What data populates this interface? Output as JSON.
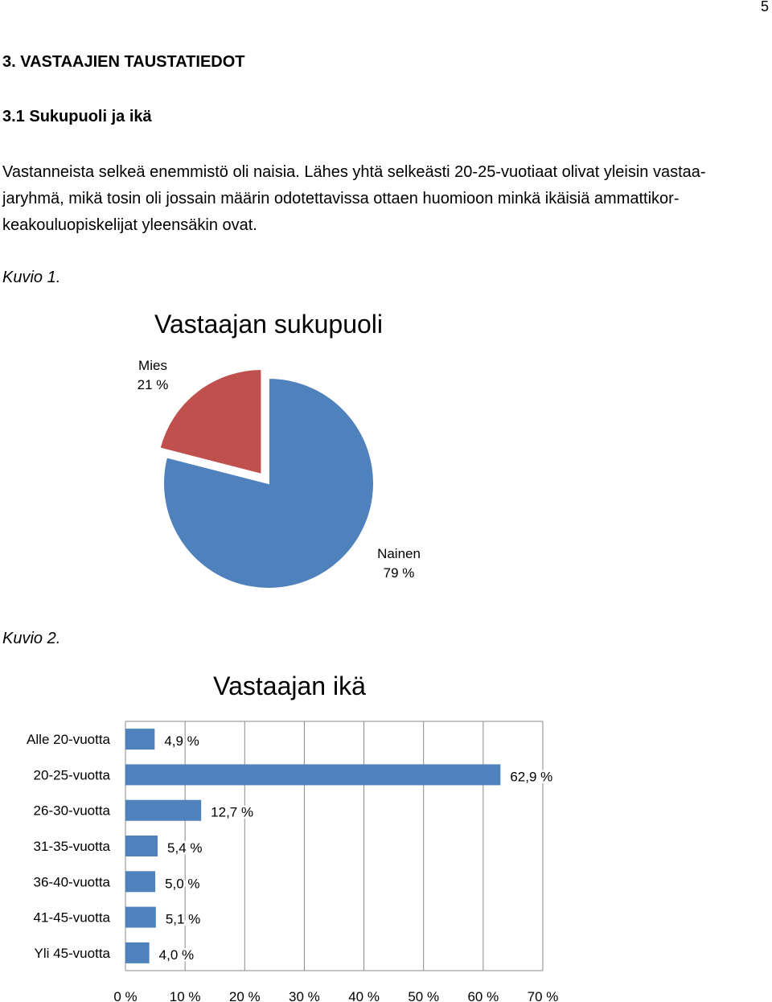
{
  "page": {
    "number": "5"
  },
  "heading": "3. VASTAAJIEN TAUSTATIEDOT",
  "subheading": "3.1 Sukupuoli ja ikä",
  "paragraph_lines": [
    "Vastanneista selkeä enemmistö oli naisia. Lähes yhtä selkeästi 20-25-vuotiaat olivat yleisin vastaa-",
    "jaryhmä, mikä tosin oli jossain määrin odotettavissa ottaen huomioon minkä ikäisiä ammattikor-",
    "keakouluopiskelijat yleensäkin ovat."
  ],
  "figure1": {
    "caption": "Kuvio 1."
  },
  "figure2": {
    "caption": "Kuvio 2."
  },
  "chart_data": [
    {
      "type": "pie",
      "title": "Vastaajan sukupuoli",
      "slices": [
        {
          "label": "Nainen",
          "value": 79,
          "value_label": "79 %",
          "color": "#4F81BD"
        },
        {
          "label": "Mies",
          "value": 21,
          "value_label": "21 %",
          "color": "#C0504D"
        }
      ]
    },
    {
      "type": "bar",
      "orientation": "horizontal",
      "title": "Vastaajan ikä",
      "categories": [
        "Alle 20-vuotta",
        "20-25-vuotta",
        "26-30-vuotta",
        "31-35-vuotta",
        "36-40-vuotta",
        "41-45-vuotta",
        "Yli 45-vuotta"
      ],
      "values": [
        4.9,
        62.9,
        12.7,
        5.4,
        5.0,
        5.1,
        4.0
      ],
      "value_labels": [
        "4,9 %",
        "62,9 %",
        "12,7 %",
        "5,4 %",
        "5,0 %",
        "5,1 %",
        "4,0 %"
      ],
      "xlim": [
        0,
        70
      ],
      "x_ticks": [
        "0 %",
        "10 %",
        "20 %",
        "30 %",
        "40 %",
        "50 %",
        "60 %",
        "70 %"
      ],
      "grid": true,
      "bar_color": "#4F81BD"
    }
  ]
}
